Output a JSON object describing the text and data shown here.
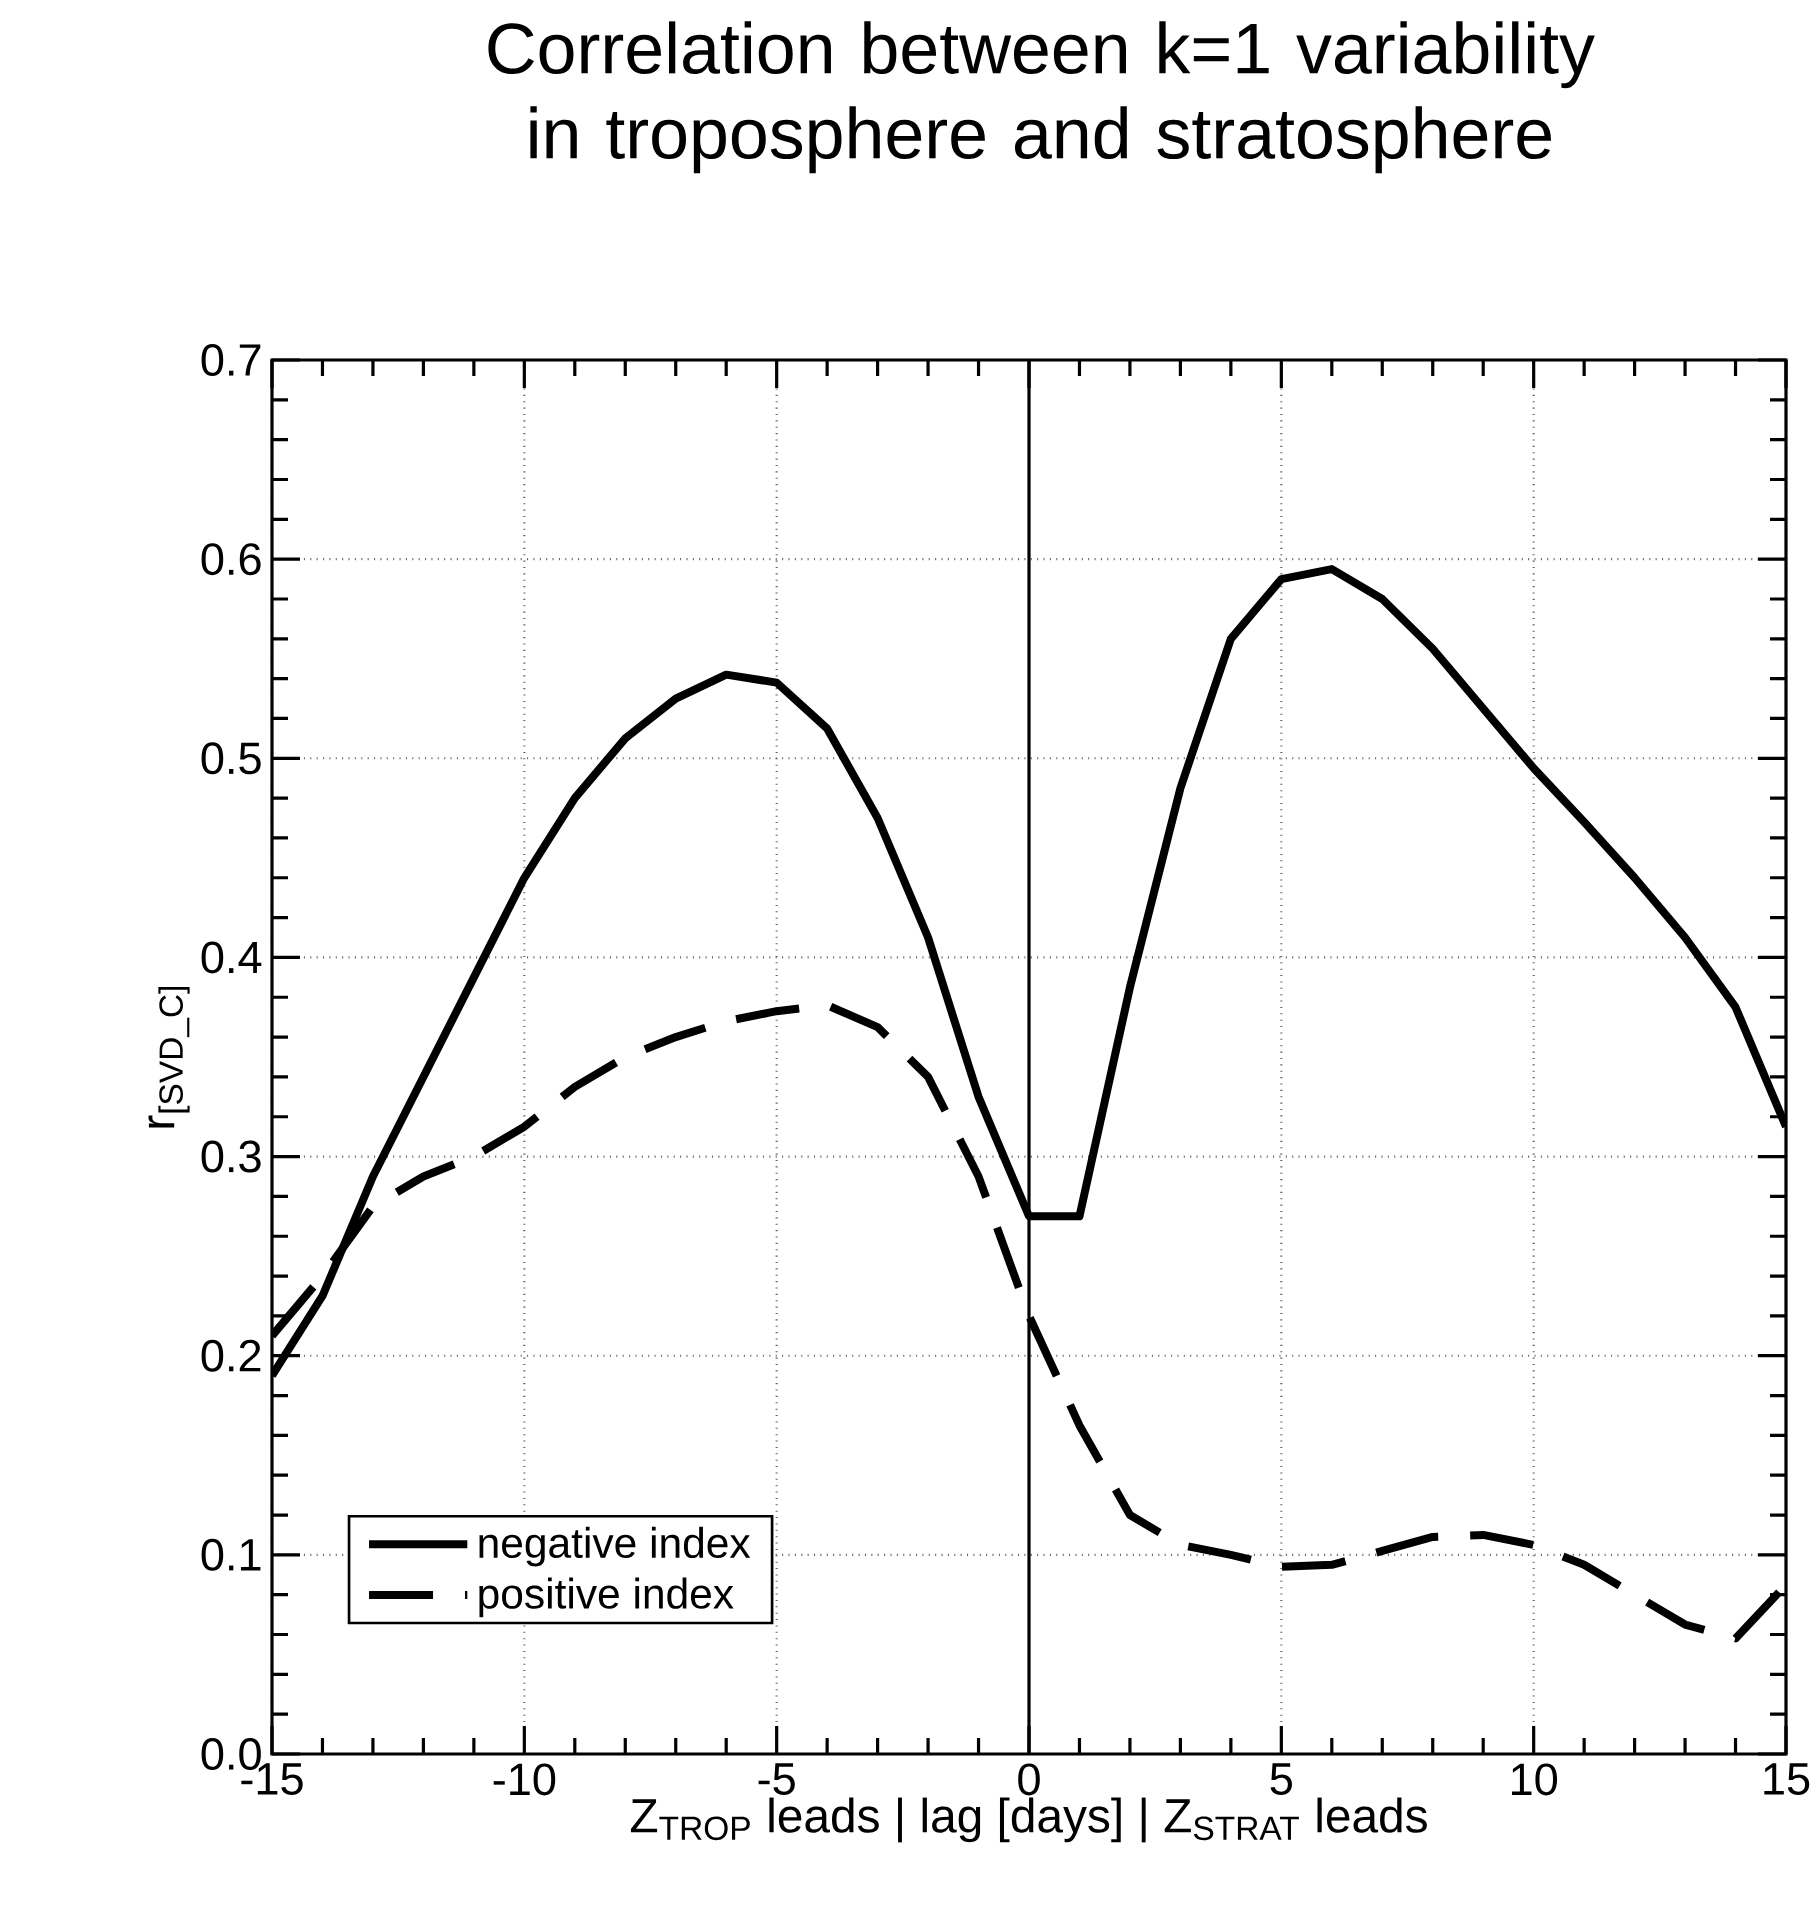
{
  "chart_data": {
    "type": "line",
    "title": "Correlation between k=1 variability in troposphere and stratosphere",
    "xlabel": "Z$_{TROP}$ leads     |   lag [days]   |     Z$_{STRAT}$ leads",
    "ylabel": "r$_{[SVD_C]}$",
    "x": [
      -15,
      -14,
      -13,
      -12,
      -11,
      -10,
      -9,
      -8,
      -7,
      -6,
      -5,
      -4,
      -3,
      -2,
      -1,
      0,
      1,
      2,
      3,
      4,
      5,
      6,
      7,
      8,
      9,
      10,
      11,
      12,
      13,
      14,
      15
    ],
    "series": [
      {
        "name": "negative index",
        "color": "#000000",
        "line_style": "solid",
        "values": [
          0.19,
          0.23,
          0.29,
          0.34,
          0.39,
          0.44,
          0.48,
          0.51,
          0.53,
          0.542,
          0.538,
          0.515,
          0.47,
          0.41,
          0.33,
          0.27,
          0.27,
          0.385,
          0.485,
          0.56,
          0.59,
          0.595,
          0.58,
          0.555,
          0.525,
          0.495,
          0.468,
          0.44,
          0.41,
          0.375,
          0.315
        ]
      },
      {
        "name": "positive  index",
        "color": "#000000",
        "line_style": "dashed",
        "values": [
          0.21,
          0.24,
          0.275,
          0.29,
          0.3,
          0.315,
          0.335,
          0.35,
          0.36,
          0.368,
          0.373,
          0.376,
          0.365,
          0.34,
          0.29,
          0.22,
          0.165,
          0.12,
          0.105,
          0.1,
          0.094,
          0.095,
          0.102,
          0.109,
          0.11,
          0.105,
          0.095,
          0.08,
          0.065,
          0.058,
          0.085
        ]
      }
    ],
    "xlim": [
      -15,
      15
    ],
    "xticks": [
      -15,
      -10,
      -5,
      0,
      5,
      10,
      15
    ],
    "ylim": [
      0,
      0.7
    ],
    "yticks": [
      {
        "value": 0,
        "label": "0.0"
      },
      {
        "value": 0.1,
        "label": "0.1"
      },
      {
        "value": 0.2,
        "label": "0.2"
      },
      {
        "value": 0.3,
        "label": "0.3"
      },
      {
        "value": 0.4,
        "label": "0.4"
      },
      {
        "value": 0.5,
        "label": "0.5"
      },
      {
        "value": 0.6,
        "label": "0.6"
      },
      {
        "value": 0.7,
        "label": "0.7"
      }
    ],
    "ref_lines": [
      {
        "axis": "x",
        "value": 0,
        "color": "#000000"
      }
    ],
    "grid": true,
    "legend": "bottom left"
  }
}
